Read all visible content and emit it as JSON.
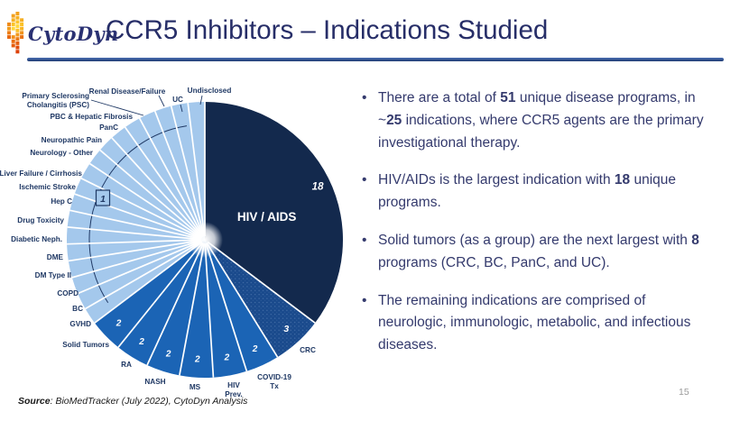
{
  "header": {
    "logo_text": "CytoDyn",
    "title": "CCR5 Inhibitors – Indications Studied"
  },
  "chart_data": {
    "type": "pie",
    "title": "CCR5 Inhibitors - Indications Studied",
    "total_programs": 51,
    "start_angle_deg": 0,
    "direction": "clockwise",
    "legend_position": "none",
    "slices": [
      {
        "label": "HIV / AIDS",
        "value": 18,
        "group": "hiv"
      },
      {
        "label": "CRC",
        "value": 3,
        "group": "crc"
      },
      {
        "label": "COVID-19 Tx",
        "value": 2,
        "group": "two"
      },
      {
        "label": "HIV Prev.",
        "value": 2,
        "group": "two"
      },
      {
        "label": "MS",
        "value": 2,
        "group": "two"
      },
      {
        "label": "NASH",
        "value": 2,
        "group": "two"
      },
      {
        "label": "RA",
        "value": 2,
        "group": "two"
      },
      {
        "label": "Solid Tumors",
        "value": 2,
        "group": "two"
      },
      {
        "label": "GVHD",
        "value": 1,
        "group": "one"
      },
      {
        "label": "BC",
        "value": 1,
        "group": "one"
      },
      {
        "label": "COPD",
        "value": 1,
        "group": "one"
      },
      {
        "label": "DM Type II",
        "value": 1,
        "group": "one"
      },
      {
        "label": "DME",
        "value": 1,
        "group": "one"
      },
      {
        "label": "Diabetic Neph.",
        "value": 1,
        "group": "one"
      },
      {
        "label": "Drug Toxicity",
        "value": 1,
        "group": "one"
      },
      {
        "label": "Hep C",
        "value": 1,
        "group": "one"
      },
      {
        "label": "Ischemic Stroke",
        "value": 1,
        "group": "one"
      },
      {
        "label": "Liver Failure / Cirrhosis",
        "value": 1,
        "group": "one"
      },
      {
        "label": "Neurology - Other",
        "value": 1,
        "group": "one"
      },
      {
        "label": "Neuropathic Pain",
        "value": 1,
        "group": "one"
      },
      {
        "label": "PanC",
        "value": 1,
        "group": "one"
      },
      {
        "label": "PBC & Hepatic Fibrosis",
        "value": 1,
        "group": "one"
      },
      {
        "label": "Primary Sclerosing Cholangitis (PSC)",
        "value": 1,
        "group": "one"
      },
      {
        "label": "Renal Disease/Failure",
        "value": 1,
        "group": "one"
      },
      {
        "label": "UC",
        "value": 1,
        "group": "one"
      },
      {
        "label": "Undisclosed",
        "value": 1,
        "group": "one"
      }
    ],
    "colors": {
      "hiv": "#13294d",
      "crc": "#1a4a8c",
      "crc_dots": "#6f94c4",
      "two": "#1b64b5",
      "one": "#a4c8ec",
      "label_navy": "#1f3864",
      "value_white": "#ffffff"
    },
    "callout_one": "1"
  },
  "bullet_marker": "•",
  "bullets": [
    [
      {
        "t": "There are a total of "
      },
      {
        "t": "51",
        "b": true
      },
      {
        "t": " unique disease programs, in ~"
      },
      {
        "t": "25",
        "b": true
      },
      {
        "t": " indications, where CCR5 agents are the primary investigational therapy."
      }
    ],
    [
      {
        "t": "HIV/AIDs is the largest indication with "
      },
      {
        "t": "18",
        "b": true
      },
      {
        "t": " unique programs."
      }
    ],
    [
      {
        "t": "Solid tumors (as a group) are the next largest with "
      },
      {
        "t": "8",
        "b": true
      },
      {
        "t": " programs (CRC, BC, PanC, and UC)."
      }
    ],
    [
      {
        "t": "The remaining indications are comprised of neurologic, immunologic, metabolic, and infectious diseases."
      }
    ]
  ],
  "footer": {
    "source_label": "Source",
    "source_text": ": BioMedTracker (July 2022), CytoDyn Analysis",
    "page_number": "15"
  }
}
